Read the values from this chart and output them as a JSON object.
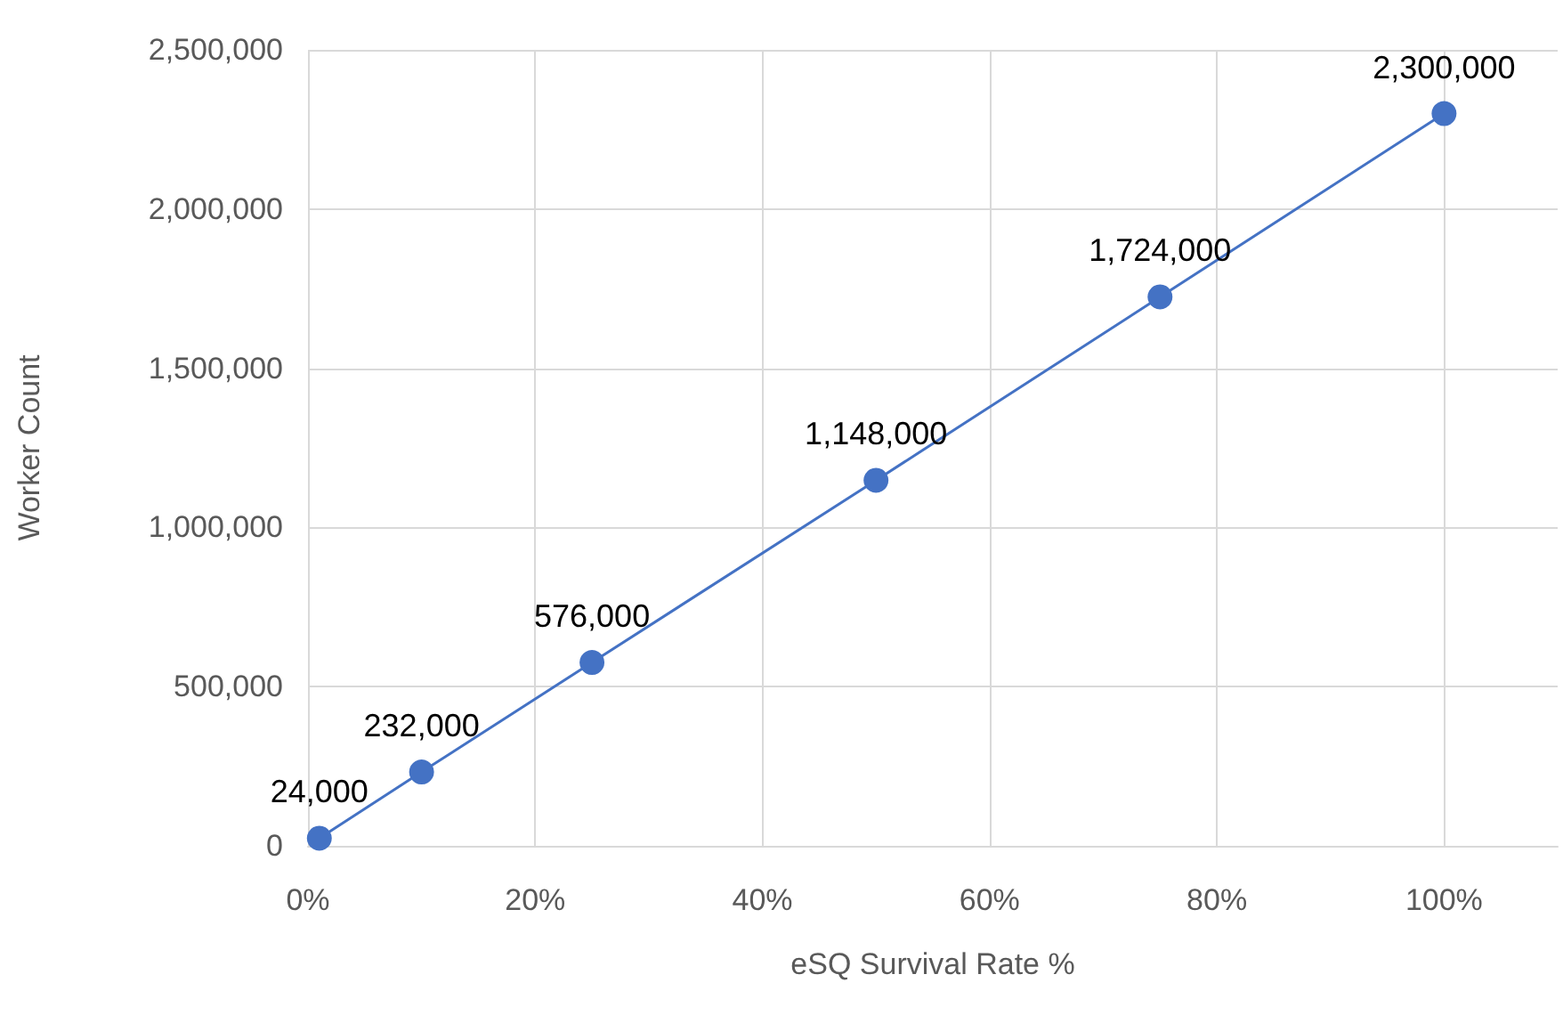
{
  "chart_data": {
    "type": "line",
    "xlabel": "eSQ Survival Rate %",
    "ylabel": "Worker Count",
    "x": [
      1,
      10,
      25,
      50,
      75,
      100
    ],
    "series": [
      {
        "color": "#4472c4",
        "values": [
          24000,
          232000,
          576000,
          1148000,
          1724000,
          2300000
        ],
        "value_labels": [
          "24,000",
          "232,000",
          "576,000",
          "1,148,000",
          "1,724,000",
          "2,300,000"
        ]
      }
    ],
    "xlim": [
      0,
      110
    ],
    "xticks": [
      {
        "value": 0,
        "label": "0%"
      },
      {
        "value": 20,
        "label": "20%"
      },
      {
        "value": 40,
        "label": "40%"
      },
      {
        "value": 60,
        "label": "60%"
      },
      {
        "value": 80,
        "label": "80%"
      },
      {
        "value": 100,
        "label": "100%"
      }
    ],
    "ylim": [
      0,
      2500000
    ],
    "yticks": [
      {
        "value": 0,
        "label": "0"
      },
      {
        "value": 500000,
        "label": "500,000"
      },
      {
        "value": 1000000,
        "label": "1,000,000"
      },
      {
        "value": 1500000,
        "label": "1,500,000"
      },
      {
        "value": 2000000,
        "label": "2,000,000"
      },
      {
        "value": 2500000,
        "label": "2,500,000"
      }
    ],
    "grid": true,
    "marker": "circle",
    "line_style": "solid"
  }
}
